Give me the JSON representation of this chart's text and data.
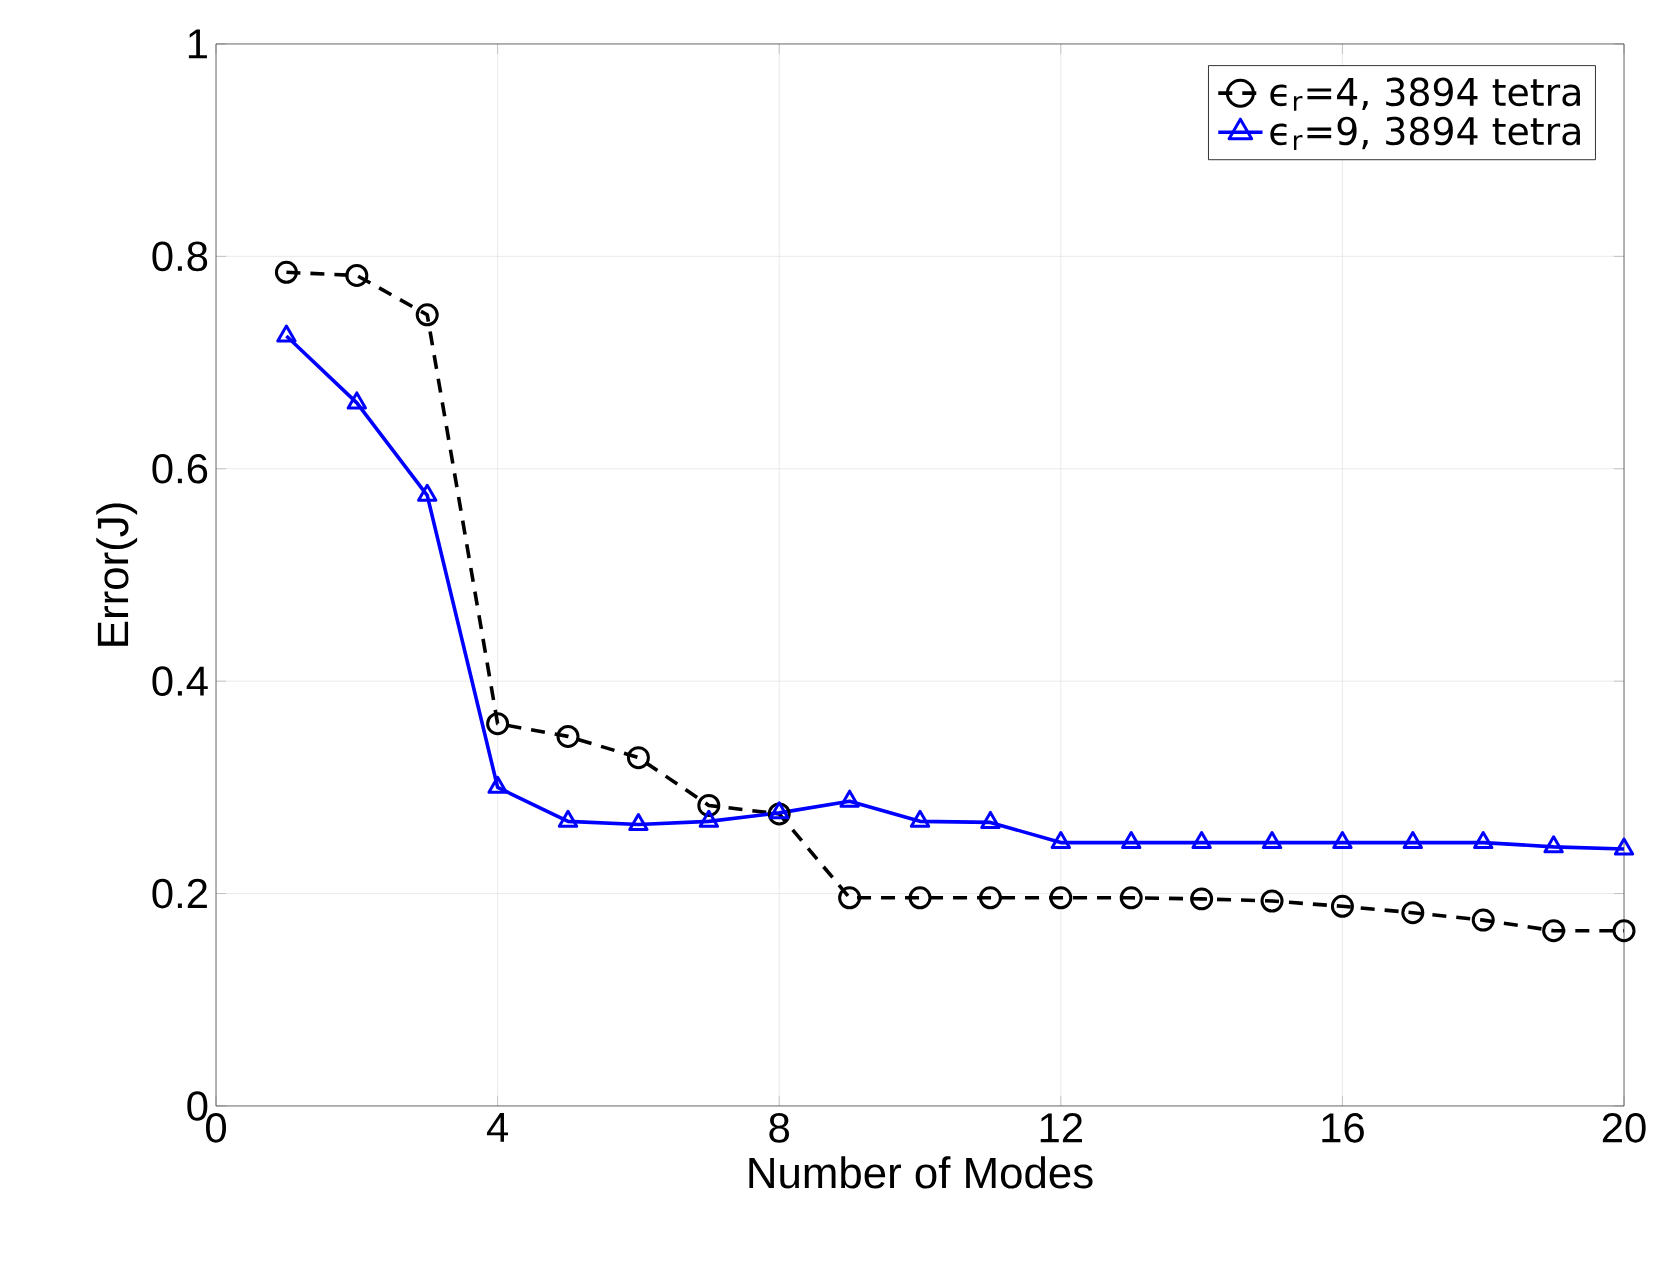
{
  "chart_data": {
    "type": "line",
    "xlabel": "Number of Modes",
    "ylabel": "Error(J)",
    "x": [
      1,
      2,
      3,
      4,
      5,
      6,
      7,
      8,
      9,
      10,
      11,
      12,
      13,
      14,
      15,
      16,
      17,
      18,
      19,
      20
    ],
    "series": [
      {
        "name": "ϵ$_{r}$=4, 3894 tetra",
        "color": "#000000",
        "marker": "circle",
        "line_style": "dashed",
        "values": [
          0.785,
          0.782,
          0.745,
          0.36,
          0.348,
          0.328,
          0.283,
          0.275,
          0.196,
          0.196,
          0.196,
          0.196,
          0.196,
          0.195,
          0.193,
          0.188,
          0.182,
          0.175,
          0.165,
          0.165
        ]
      },
      {
        "name": "ϵ$_{r}$=9, 3894 tetra",
        "color": "#0000ff",
        "marker": "triangle",
        "line_style": "solid",
        "values": [
          0.725,
          0.662,
          0.575,
          0.3,
          0.268,
          0.265,
          0.268,
          0.276,
          0.287,
          0.268,
          0.267,
          0.248,
          0.248,
          0.248,
          0.248,
          0.248,
          0.248,
          0.248,
          0.244,
          0.242
        ]
      }
    ],
    "xlim": [
      0,
      20
    ],
    "ylim": [
      0,
      1
    ],
    "xticks": [
      0,
      4,
      8,
      12,
      16,
      20
    ],
    "yticks": [
      0,
      0.2,
      0.4,
      0.6,
      0.8,
      1
    ],
    "grid": true,
    "legend": "top right"
  }
}
